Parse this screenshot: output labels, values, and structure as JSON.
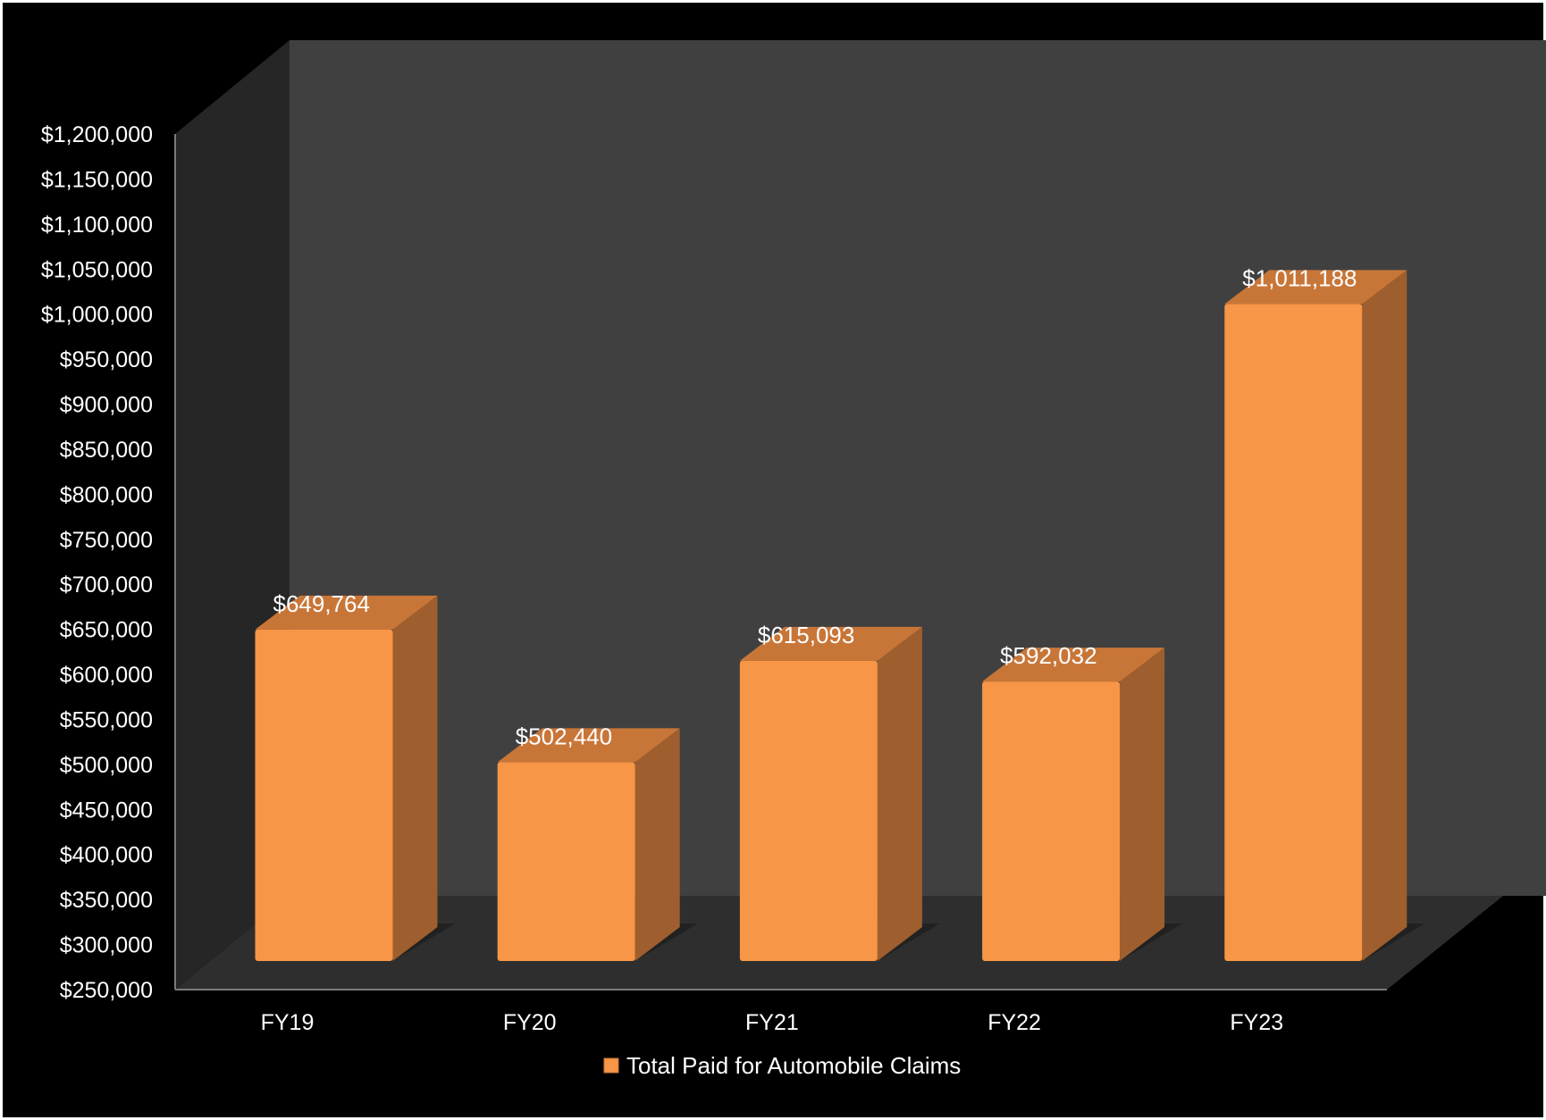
{
  "chart_data": {
    "type": "bar",
    "style": "3d-clustered-column",
    "categories": [
      "FY19",
      "FY20",
      "FY21",
      "FY22",
      "FY23"
    ],
    "series": [
      {
        "name": "Total Paid for Automobile Claims",
        "values": [
          649764,
          502440,
          615093,
          592032,
          1011188
        ],
        "data_labels": [
          "$649,764",
          "$502,440",
          "$615,093",
          "$592,032",
          "$1,011,188"
        ],
        "color": "#f79646"
      }
    ],
    "y_ticks": [
      "$250,000",
      "$300,000",
      "$350,000",
      "$400,000",
      "$450,000",
      "$500,000",
      "$550,000",
      "$600,000",
      "$650,000",
      "$700,000",
      "$750,000",
      "$800,000",
      "$850,000",
      "$900,000",
      "$950,000",
      "$1,000,000",
      "$1,050,000",
      "$1,100,000",
      "$1,150,000",
      "$1,200,000"
    ],
    "ylim": [
      250000,
      1200000
    ],
    "y_step": 50000,
    "grid": false,
    "legend_position": "bottom",
    "title": "",
    "xlabel": "",
    "ylabel": "",
    "colors": {
      "page_background": "#000000",
      "back_wall": "#404040",
      "side_wall": "#262626",
      "floor": "#2e2e2e",
      "bar_front": "#f79646",
      "bar_top": "#c87638",
      "bar_side": "#9e5e2e",
      "text": "#ffffff"
    }
  }
}
